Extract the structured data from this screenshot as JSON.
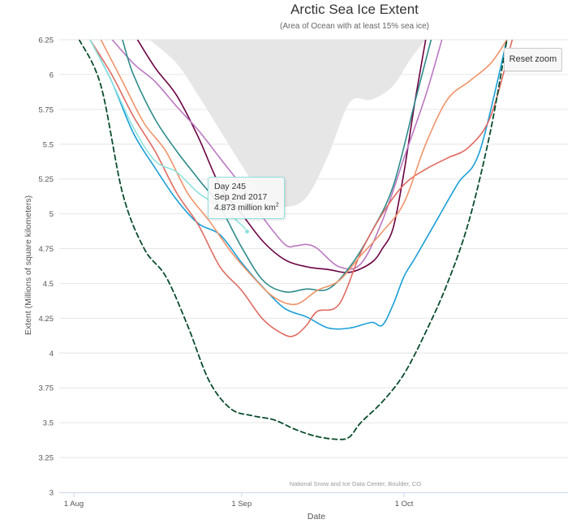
{
  "chart_data": {
    "type": "line",
    "title": "Arctic Sea Ice Extent",
    "subtitle": "(Area of Ocean with at least 15% sea ice)",
    "xlabel": "Date",
    "ylabel": "Extent (Millions of square kilometers)",
    "x_ticks": [
      {
        "day": 213,
        "label": "1 Aug"
      },
      {
        "day": 244,
        "label": "1 Sep"
      },
      {
        "day": 274,
        "label": "1 Oct"
      }
    ],
    "y_ticks": [
      3,
      3.25,
      3.5,
      3.75,
      4,
      4.25,
      4.5,
      4.75,
      5,
      5.25,
      5.5,
      5.75,
      6,
      6.25
    ],
    "xlim": [
      211.7,
      304
    ],
    "ylim": [
      3,
      6.25
    ],
    "grid": true,
    "legend": "none",
    "credit": "National Snow and Ice Data Center, Boulder, CO",
    "range_band": {
      "color": "#e6e6e6",
      "x": [
        227,
        232,
        236,
        240,
        244,
        248,
        252,
        256,
        260,
        264,
        268,
        272,
        275,
        278
      ],
      "upper": [
        6.3,
        6.3,
        6.3,
        6.3,
        6.3,
        6.3,
        6.3,
        6.3,
        6.3,
        6.3,
        6.3,
        6.3,
        6.3,
        6.3
      ],
      "lower": [
        6.25,
        6.08,
        5.85,
        5.6,
        5.35,
        5.12,
        5.05,
        5.12,
        5.42,
        5.8,
        5.82,
        5.92,
        6.1,
        6.25
      ]
    },
    "series": [
      {
        "color": "#6a0041",
        "dash": false,
        "x": [
          224,
          228,
          232,
          236,
          240,
          244,
          248,
          252,
          256,
          260,
          264,
          268,
          270,
          272,
          274,
          276,
          278
        ],
        "y": [
          6.3,
          6.05,
          5.85,
          5.55,
          5.2,
          5.0,
          4.8,
          4.67,
          4.62,
          4.6,
          4.58,
          4.65,
          4.75,
          4.9,
          5.3,
          5.8,
          6.25
        ]
      },
      {
        "color": "#bb77c2",
        "dash": false,
        "x": [
          219,
          224,
          228,
          232,
          236,
          240,
          244,
          248,
          252,
          254,
          256,
          258,
          262,
          266,
          270,
          274,
          278,
          281
        ],
        "y": [
          6.3,
          6.08,
          5.95,
          5.77,
          5.6,
          5.4,
          5.2,
          4.97,
          4.78,
          4.77,
          4.78,
          4.75,
          4.62,
          4.64,
          4.95,
          5.4,
          5.85,
          6.25
        ]
      },
      {
        "color": "#2e8b8b",
        "dash": false,
        "x": [
          222,
          224,
          228,
          232,
          236,
          240,
          244,
          248,
          252,
          256,
          260,
          264,
          268,
          272,
          276,
          279
        ],
        "y": [
          6.25,
          6.0,
          5.68,
          5.45,
          5.25,
          5.05,
          4.76,
          4.52,
          4.44,
          4.46,
          4.46,
          4.62,
          4.87,
          5.2,
          5.8,
          6.25
        ]
      },
      {
        "color": "#1a9fd9",
        "dash": false,
        "x": [
          216,
          220,
          224,
          228,
          232,
          236,
          240,
          244,
          248,
          252,
          256,
          260,
          264,
          268,
          270,
          272,
          274,
          276,
          280,
          284,
          288,
          293
        ],
        "y": [
          6.25,
          5.95,
          5.58,
          5.33,
          5.1,
          4.93,
          4.85,
          4.65,
          4.47,
          4.32,
          4.26,
          4.18,
          4.18,
          4.22,
          4.2,
          4.35,
          4.55,
          4.68,
          4.95,
          5.22,
          5.45,
          6.25
        ]
      },
      {
        "color": "#e06a60",
        "dash": false,
        "x": [
          216,
          220,
          224,
          228,
          232,
          236,
          240,
          244,
          248,
          252,
          254,
          256,
          258,
          262,
          266,
          270,
          274,
          278,
          282,
          286,
          290,
          294
        ],
        "y": [
          6.25,
          6.0,
          5.7,
          5.45,
          5.15,
          4.92,
          4.62,
          4.45,
          4.24,
          4.13,
          4.13,
          4.2,
          4.3,
          4.35,
          4.72,
          5.0,
          5.21,
          5.32,
          5.4,
          5.48,
          5.7,
          6.25
        ]
      },
      {
        "color": "#f0946a",
        "dash": false,
        "x": [
          218,
          222,
          226,
          230,
          234,
          238,
          242,
          246,
          250,
          254,
          258,
          262,
          266,
          270,
          274,
          278,
          282,
          286,
          290,
          293
        ],
        "y": [
          6.25,
          5.95,
          5.65,
          5.45,
          5.15,
          4.95,
          4.73,
          4.55,
          4.4,
          4.35,
          4.45,
          4.52,
          4.7,
          4.87,
          5.08,
          5.5,
          5.82,
          5.95,
          6.08,
          6.25
        ]
      },
      {
        "color": "#8ee3df",
        "dash": false,
        "x": [
          216,
          220,
          224,
          228,
          232,
          236,
          240,
          244,
          245
        ],
        "y": [
          6.25,
          5.95,
          5.62,
          5.38,
          5.3,
          5.15,
          5.05,
          4.92,
          4.873
        ]
      },
      {
        "color": "#0a4d2e",
        "dash": true,
        "x": [
          214,
          218,
          222,
          226,
          230,
          234,
          238,
          242,
          246,
          250,
          254,
          258,
          262,
          264,
          266,
          270,
          274,
          278,
          282,
          286,
          290,
          293
        ],
        "y": [
          6.25,
          5.92,
          5.15,
          4.75,
          4.55,
          4.2,
          3.8,
          3.6,
          3.55,
          3.52,
          3.45,
          3.4,
          3.38,
          3.4,
          3.5,
          3.65,
          3.85,
          4.15,
          4.5,
          4.95,
          5.6,
          6.25
        ]
      }
    ]
  },
  "tooltip": {
    "day_label": "Day 245",
    "date_label": "Sep 2nd 2017",
    "value_label": "4.873 million km",
    "unit_superscript": "2",
    "point": {
      "x": 245,
      "y": 4.873
    }
  },
  "reset_zoom_label": "Reset zoom"
}
